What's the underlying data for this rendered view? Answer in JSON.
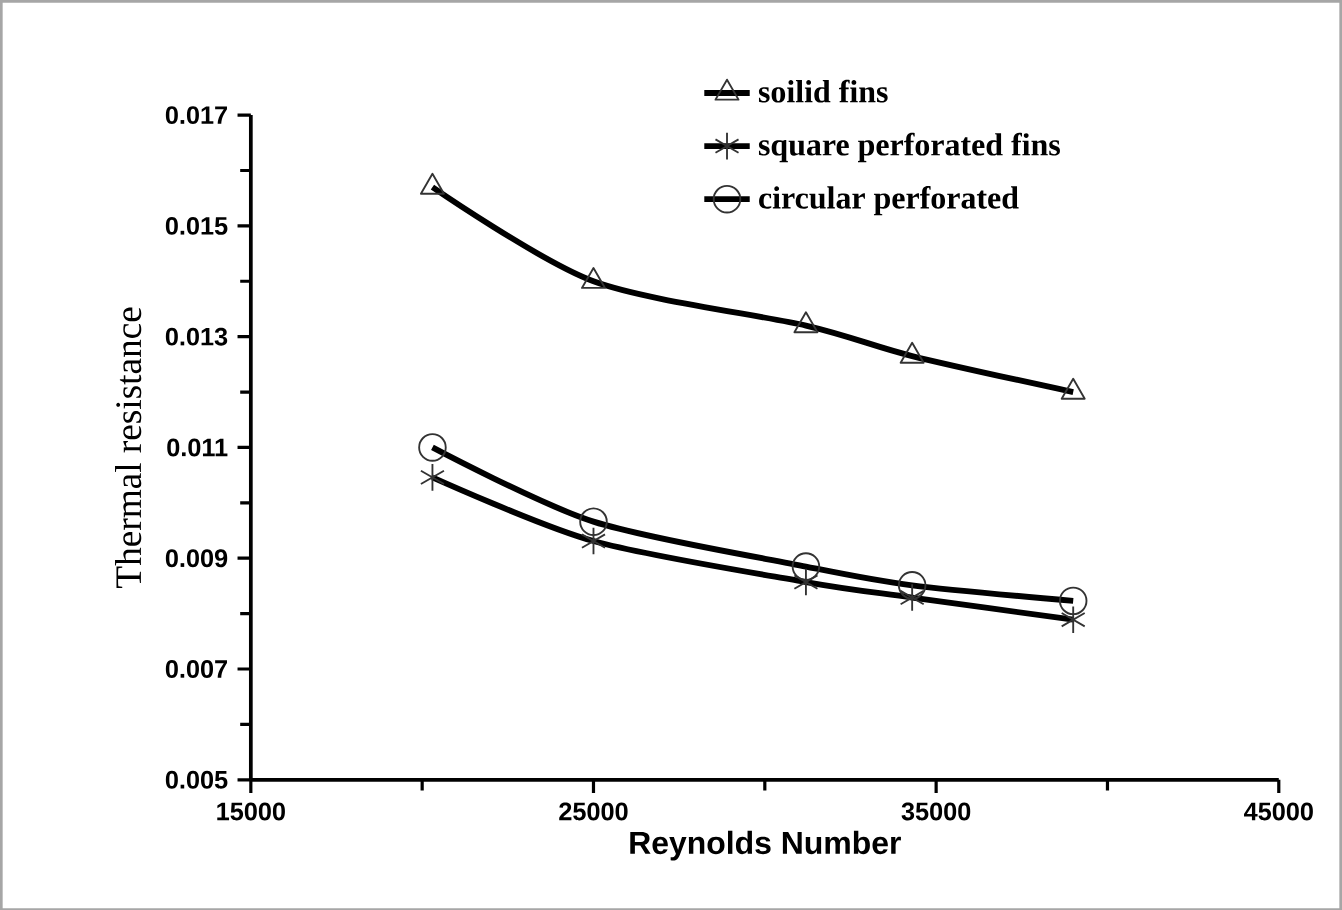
{
  "chart_data": {
    "type": "line",
    "xlabel": "Reynolds Number",
    "ylabel": "Thermal resistance",
    "x": [
      20300,
      25000,
      31200,
      34300,
      39000
    ],
    "series": [
      {
        "name": "soilid fins",
        "color": "#000000",
        "marker": "triangle",
        "values": [
          0.0157,
          0.014,
          0.0132,
          0.01265,
          0.012
        ]
      },
      {
        "name": "square perforated fins",
        "color": "#000000",
        "marker": "cross",
        "values": [
          0.01046,
          0.00931,
          0.00857,
          0.00829,
          0.00789
        ]
      },
      {
        "name": "circular perforated",
        "color": "#000000",
        "marker": "circle",
        "values": [
          0.011,
          0.00966,
          0.00885,
          0.00851,
          0.00823
        ]
      }
    ],
    "xlim": [
      15000,
      45000
    ],
    "xticks": [
      15000,
      25000,
      35000,
      45000
    ],
    "ylim": [
      0.005,
      0.017
    ],
    "yticks": [
      0.005,
      0.007,
      0.009,
      0.011,
      0.013,
      0.015,
      0.017
    ],
    "grid": false,
    "legend": "top right",
    "line_style": "solid"
  }
}
